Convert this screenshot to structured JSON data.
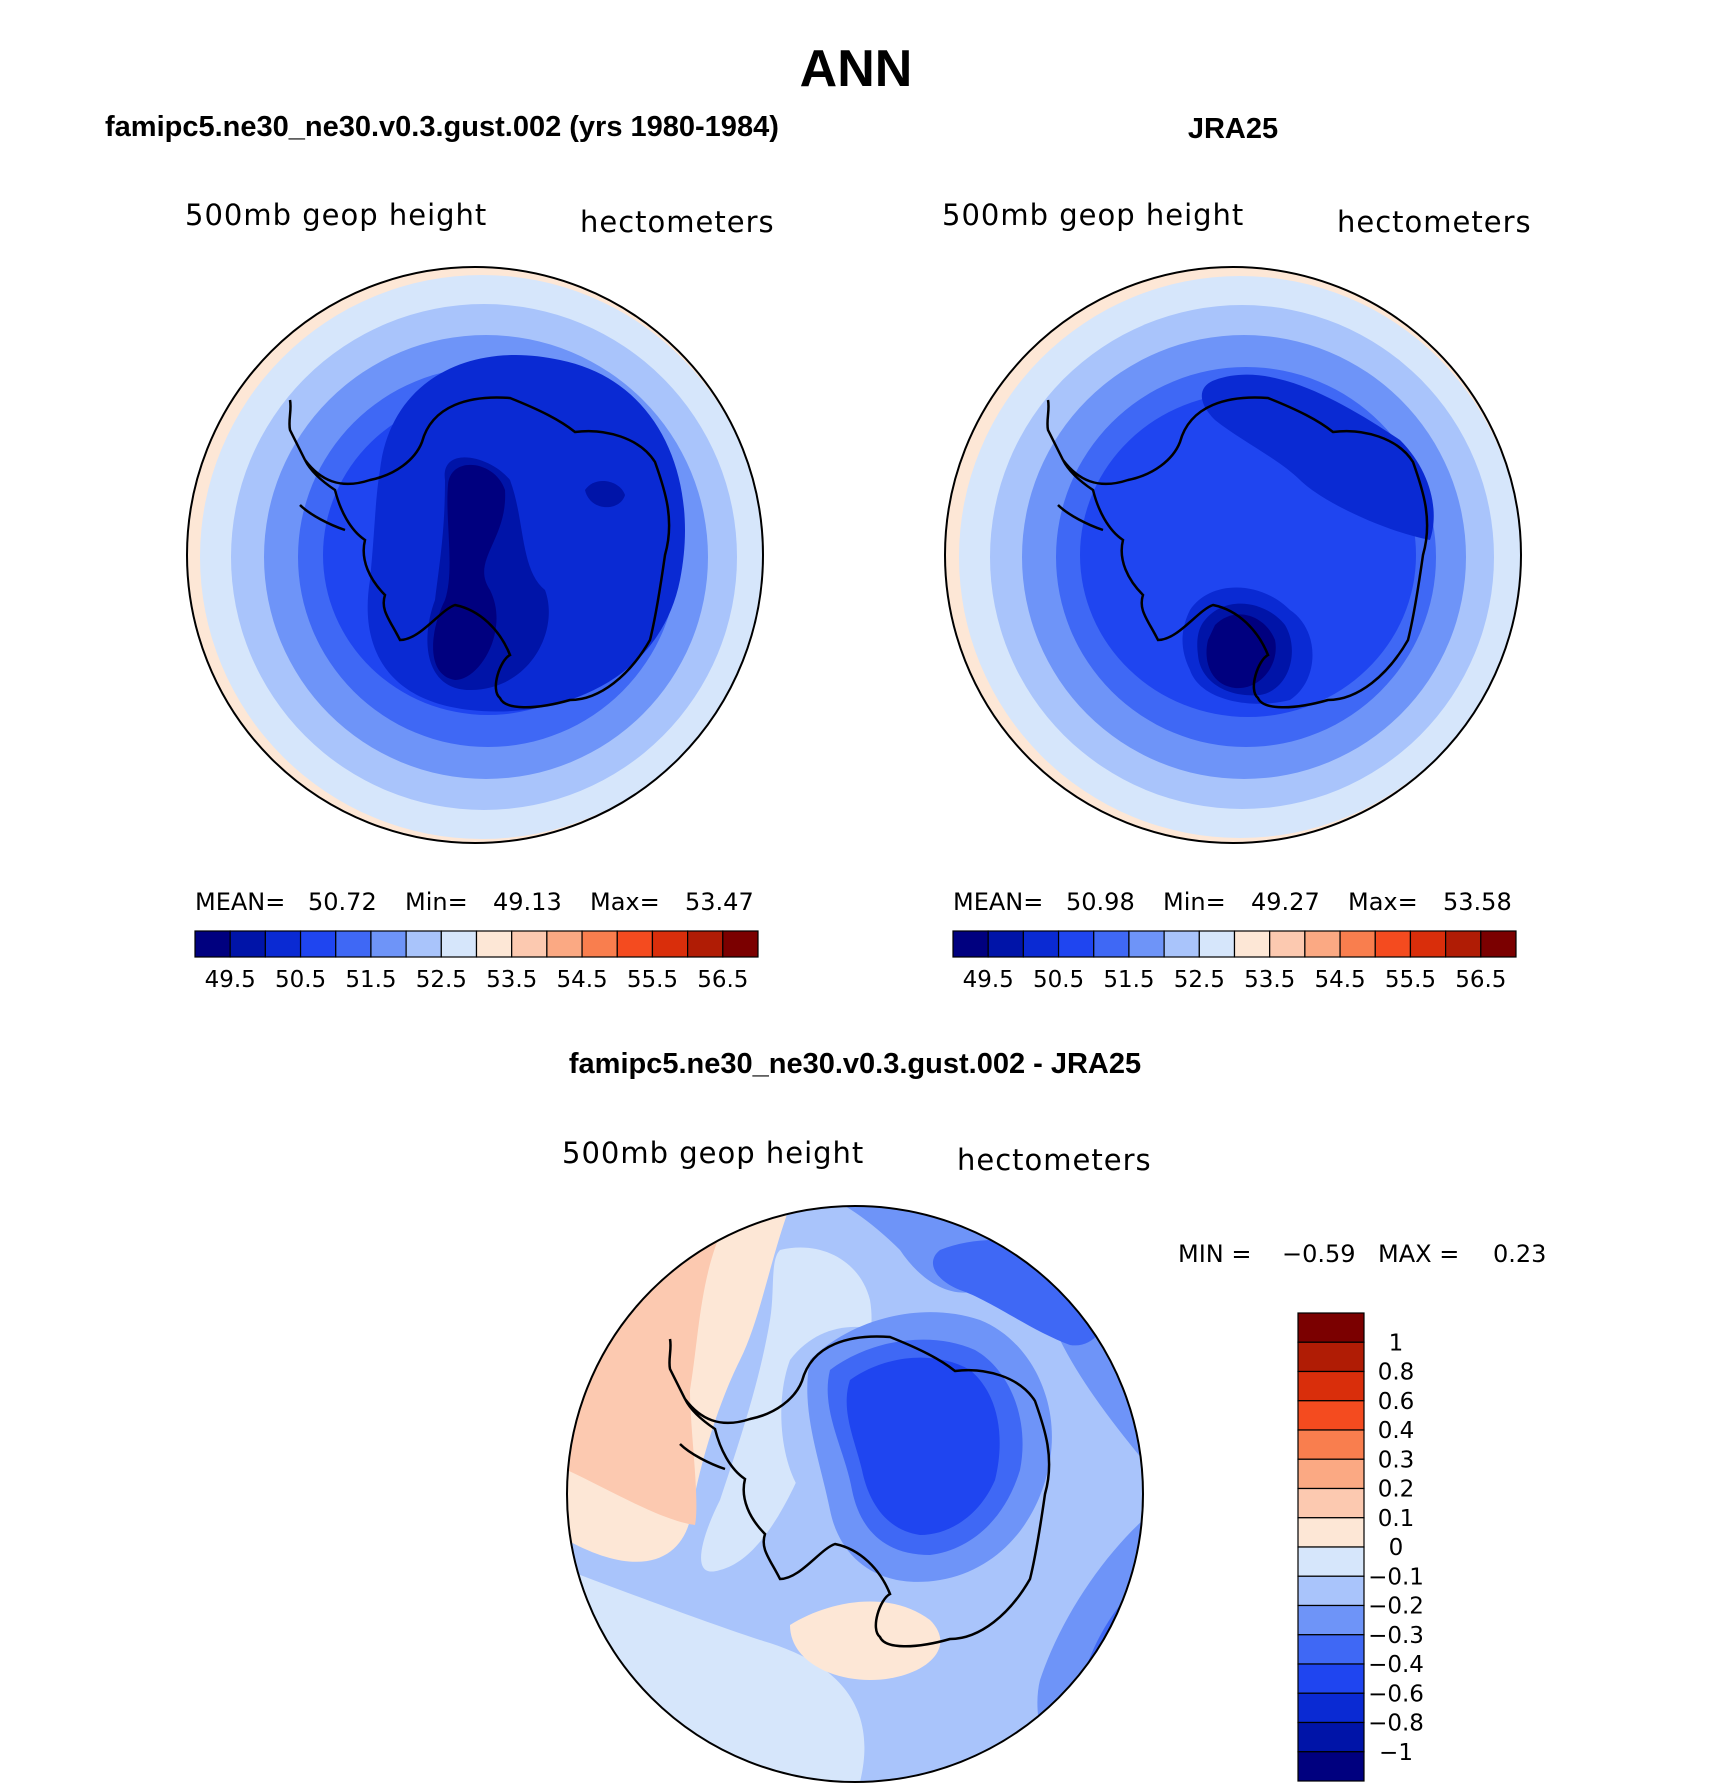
{
  "figure": {
    "title": "ANN"
  },
  "colors": {
    "abs_scale": [
      "#00007f",
      "#0014a8",
      "#0a2ad3",
      "#1f45f0",
      "#3f68f5",
      "#6e94f8",
      "#a9c4fb",
      "#d6e6fb",
      "#fde7d6",
      "#fcc9b0",
      "#fba983",
      "#f97e4e",
      "#f44b1f",
      "#d92e0b",
      "#b01c05",
      "#7b0000"
    ],
    "diff_scale": [
      "#00007f",
      "#0014a8",
      "#0a2ad3",
      "#1f45f0",
      "#3f68f5",
      "#6e94f8",
      "#a9c4fb",
      "#d6e6fb",
      "#fde7d6",
      "#fcc9b0",
      "#fba983",
      "#f97e4e",
      "#f44b1f",
      "#d92e0b",
      "#b01c05",
      "#7b0000"
    ]
  },
  "chart_data": [
    {
      "type": "heatmap",
      "title": "famipc5.ne30_ne30.v0.3.gust.002 (yrs 1980-1984)",
      "variable": "500mb geop height",
      "units": "hectometers",
      "projection": "south polar stereographic",
      "stats": {
        "mean_label": "MEAN=",
        "mean": "50.72",
        "min_label": "Min=",
        "min": "49.13",
        "max_label": "Max=",
        "max": "53.47"
      },
      "levels": [
        "49.5",
        "50",
        "50.5",
        "51",
        "51.5",
        "52",
        "52.5",
        "53",
        "53.5",
        "54",
        "54.5",
        "55",
        "55.5",
        "56",
        "56.5"
      ],
      "tick_labels": [
        "49.5",
        "50.5",
        "51.5",
        "52.5",
        "53.5",
        "54.5",
        "55.5",
        "56.5"
      ]
    },
    {
      "type": "heatmap",
      "title": "JRA25",
      "variable": "500mb geop height",
      "units": "hectometers",
      "projection": "south polar stereographic",
      "stats": {
        "mean_label": "MEAN=",
        "mean": "50.98",
        "min_label": "Min=",
        "min": "49.27",
        "max_label": "Max=",
        "max": "53.58"
      },
      "levels": [
        "49.5",
        "50",
        "50.5",
        "51",
        "51.5",
        "52",
        "52.5",
        "53",
        "53.5",
        "54",
        "54.5",
        "55",
        "55.5",
        "56",
        "56.5"
      ],
      "tick_labels": [
        "49.5",
        "50.5",
        "51.5",
        "52.5",
        "53.5",
        "54.5",
        "55.5",
        "56.5"
      ]
    },
    {
      "type": "heatmap",
      "title": "famipc5.ne30_ne30.v0.3.gust.002 - JRA25",
      "variable": "500mb geop height",
      "units": "hectometers",
      "projection": "south polar stereographic",
      "stats": {
        "min_label": "MIN =",
        "min": "−0.59",
        "max_label": "MAX =",
        "max": "0.23"
      },
      "levels": [
        "1",
        "0.8",
        "0.6",
        "0.4",
        "0.3",
        "0.2",
        "0.1",
        "0",
        "−0.1",
        "−0.2",
        "−0.3",
        "−0.4",
        "−0.6",
        "−0.8",
        "−1"
      ]
    }
  ]
}
